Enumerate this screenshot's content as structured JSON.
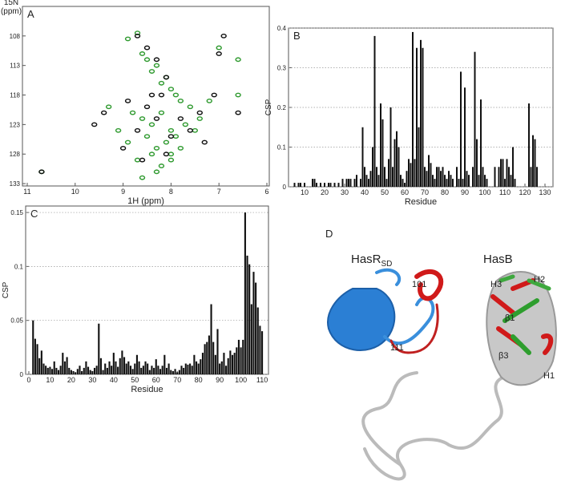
{
  "chart_data": [
    {
      "type": "scatter",
      "panel_label": "A",
      "xlabel": "1H (ppm)",
      "ylabel": [
        "15N",
        "(ppm)"
      ],
      "xlim": [
        11.1,
        5.95
      ],
      "xticks": [
        11,
        10,
        9,
        8,
        7,
        6
      ],
      "ylim": [
        103,
        133.4
      ],
      "yticks": [
        108,
        113,
        118,
        123,
        128,
        133
      ],
      "y_inverted": true,
      "grid": false,
      "series": [
        {
          "color": "#2f9a2f",
          "x": [
            8.9,
            8.7,
            8.6,
            8.5,
            8.4,
            8.3,
            8.2,
            8.1,
            8.0,
            7.9,
            7.8,
            7.6,
            7.2,
            7.0,
            6.6,
            8.8,
            8.6,
            8.4,
            8.2,
            8.0,
            7.7,
            7.4,
            8.9,
            8.5,
            8.3,
            8.1,
            7.9,
            9.1,
            8.7,
            8.4,
            8.2,
            8.0,
            7.8,
            7.5,
            9.3,
            8.6,
            8.3,
            8.0,
            10.7,
            6.6
          ],
          "values": [
            108.5,
            107.5,
            111,
            112,
            114,
            113,
            116,
            115,
            117,
            118,
            119,
            120,
            119,
            110,
            112,
            121,
            122,
            123,
            121,
            124,
            123,
            122,
            126,
            125,
            127,
            126,
            125,
            124,
            129,
            128,
            130,
            128,
            127,
            124,
            120,
            132,
            131,
            129,
            131,
            118
          ]
        },
        {
          "color": "#111111",
          "x": [
            8.7,
            8.5,
            8.3,
            8.1,
            7.0,
            6.6,
            9.4,
            8.9,
            8.5,
            8.2,
            7.8,
            7.4,
            7.1,
            9.6,
            8.7,
            8.3,
            8.0,
            7.6,
            9.0,
            8.6,
            8.1,
            10.7,
            7.3,
            6.9,
            8.4
          ],
          "values": [
            108,
            110,
            112,
            115,
            111,
            121,
            121,
            119,
            120,
            118,
            122,
            121,
            118,
            123,
            124,
            122,
            125,
            124,
            127,
            129,
            128,
            131,
            126,
            108,
            118
          ]
        }
      ]
    },
    {
      "type": "bar",
      "panel_label": "B",
      "xlabel": "Residue",
      "ylabel": "CSP",
      "color": "#111111",
      "grid": true,
      "xlim": [
        2,
        134
      ],
      "xticks": [
        10,
        20,
        30,
        40,
        50,
        60,
        70,
        80,
        90,
        100,
        110,
        120,
        130
      ],
      "ylim": [
        0,
        0.4
      ],
      "yticks": [
        0,
        0.1,
        0.2,
        0.3,
        0.4
      ],
      "x": [
        5,
        7,
        8,
        10,
        14,
        15,
        16,
        18,
        20,
        22,
        23,
        25,
        27,
        29,
        31,
        32,
        33,
        35,
        36,
        38,
        39,
        40,
        41,
        42,
        43,
        44,
        45,
        46,
        47,
        48,
        49,
        50,
        51,
        52,
        53,
        54,
        55,
        56,
        57,
        58,
        59,
        60,
        61,
        62,
        63,
        64,
        65,
        66,
        67,
        68,
        69,
        70,
        71,
        72,
        73,
        74,
        75,
        76,
        77,
        78,
        79,
        80,
        81,
        82,
        83,
        84,
        86,
        87,
        88,
        89,
        90,
        91,
        92,
        94,
        95,
        96,
        97,
        98,
        99,
        100,
        101,
        105,
        107,
        108,
        109,
        110,
        111,
        112,
        113,
        114,
        115,
        122,
        123,
        124,
        125,
        126
      ],
      "values": [
        0.01,
        0.01,
        0.01,
        0.01,
        0.02,
        0.02,
        0.01,
        0.01,
        0.01,
        0.01,
        0.01,
        0.01,
        0.01,
        0.02,
        0.02,
        0.02,
        0.02,
        0.02,
        0.03,
        0.02,
        0.15,
        0.05,
        0.03,
        0.02,
        0.04,
        0.1,
        0.38,
        0.05,
        0.03,
        0.21,
        0.17,
        0.05,
        0.02,
        0.07,
        0.2,
        0.05,
        0.12,
        0.14,
        0.1,
        0.03,
        0.02,
        0.01,
        0.04,
        0.07,
        0.06,
        0.39,
        0.07,
        0.35,
        0.15,
        0.37,
        0.35,
        0.05,
        0.04,
        0.08,
        0.06,
        0.03,
        0.02,
        0.05,
        0.05,
        0.04,
        0.05,
        0.03,
        0.02,
        0.04,
        0.03,
        0.02,
        0.05,
        0.02,
        0.29,
        0.02,
        0.25,
        0.04,
        0.03,
        0.05,
        0.34,
        0.12,
        0.03,
        0.22,
        0.05,
        0.03,
        0.02,
        0.05,
        0.05,
        0.07,
        0.07,
        0.02,
        0.07,
        0.05,
        0.03,
        0.1,
        0.02,
        0.21,
        0.05,
        0.13,
        0.12,
        0.05
      ]
    },
    {
      "type": "bar",
      "panel_label": "C",
      "xlabel": "Residue",
      "ylabel": "CSP",
      "color": "#111111",
      "grid": true,
      "xlim": [
        -1.5,
        113
      ],
      "xticks": [
        0,
        10,
        20,
        30,
        40,
        50,
        60,
        70,
        80,
        90,
        100,
        110
      ],
      "ylim": [
        0,
        0.156
      ],
      "yticks": [
        0,
        0.05,
        0.1,
        0.15
      ],
      "x": [
        2,
        3,
        4,
        5,
        6,
        7,
        8,
        9,
        10,
        11,
        12,
        13,
        14,
        15,
        16,
        17,
        18,
        19,
        20,
        21,
        22,
        23,
        24,
        25,
        26,
        27,
        28,
        29,
        30,
        31,
        32,
        33,
        34,
        35,
        36,
        37,
        38,
        39,
        40,
        41,
        42,
        43,
        44,
        45,
        46,
        47,
        48,
        49,
        50,
        51,
        52,
        53,
        54,
        55,
        56,
        57,
        58,
        59,
        60,
        61,
        62,
        63,
        64,
        65,
        66,
        67,
        68,
        69,
        70,
        71,
        72,
        73,
        74,
        75,
        76,
        77,
        78,
        79,
        80,
        81,
        82,
        83,
        84,
        85,
        86,
        87,
        88,
        89,
        90,
        91,
        92,
        93,
        94,
        95,
        96,
        97,
        98,
        99,
        100,
        101,
        102,
        103,
        104,
        105,
        106,
        107,
        108,
        109,
        110
      ],
      "values": [
        0.05,
        0.033,
        0.028,
        0.015,
        0.022,
        0.01,
        0.008,
        0.006,
        0.007,
        0.005,
        0.012,
        0.006,
        0.004,
        0.008,
        0.02,
        0.012,
        0.016,
        0.006,
        0.004,
        0.003,
        0.002,
        0.005,
        0.008,
        0.003,
        0.006,
        0.012,
        0.007,
        0.004,
        0.003,
        0.006,
        0.008,
        0.047,
        0.015,
        0.004,
        0.01,
        0.006,
        0.012,
        0.008,
        0.02,
        0.012,
        0.007,
        0.015,
        0.022,
        0.016,
        0.01,
        0.012,
        0.008,
        0.005,
        0.01,
        0.018,
        0.012,
        0.006,
        0.008,
        0.012,
        0.01,
        0.004,
        0.008,
        0.006,
        0.014,
        0.008,
        0.005,
        0.008,
        0.018,
        0.006,
        0.01,
        0.004,
        0.003,
        0.005,
        0.002,
        0.004,
        0.008,
        0.006,
        0.01,
        0.009,
        0.01,
        0.008,
        0.018,
        0.012,
        0.01,
        0.014,
        0.02,
        0.028,
        0.03,
        0.036,
        0.065,
        0.03,
        0.018,
        0.042,
        0.01,
        0.012,
        0.02,
        0.008,
        0.015,
        0.022,
        0.018,
        0.02,
        0.025,
        0.032,
        0.025,
        0.032,
        0.15,
        0.11,
        0.102,
        0.065,
        0.095,
        0.085,
        0.062,
        0.045,
        0.04
      ]
    }
  ],
  "panel_d": {
    "label": "D",
    "hasr": [
      "HasR",
      "SD"
    ],
    "hasb": "HasB",
    "loop_start": "101",
    "loop_end": "111",
    "h3": "H3",
    "h2": "H2",
    "b1": "β1",
    "b3": "β3",
    "h1": "H1"
  }
}
